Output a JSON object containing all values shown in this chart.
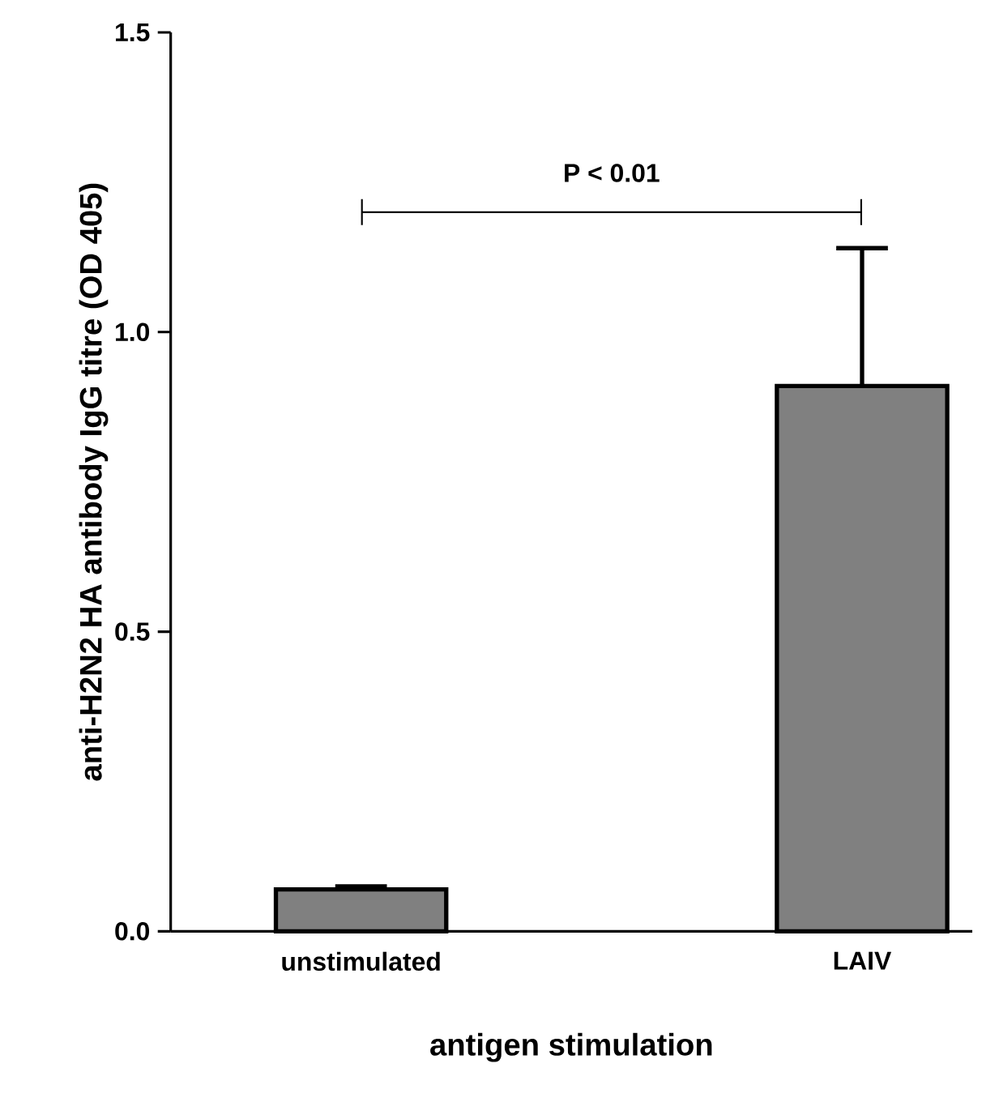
{
  "chart_data": {
    "type": "bar",
    "xlabel": "antigen stimulation",
    "ylabel": "anti-H2N2 HA antibody IgG titre (OD 405)",
    "categories": [
      "unstimulated",
      "LAIV"
    ],
    "values": [
      0.07,
      0.91
    ],
    "errors": [
      [
        0.07,
        0.075
      ],
      [
        0.91,
        1.14
      ]
    ],
    "color": "#808080",
    "ylim": [
      0,
      1.5
    ],
    "yticks": [
      {
        "value": 0,
        "label": "0.0"
      },
      {
        "value": 0.5,
        "label": "0.5"
      },
      {
        "value": 1.0,
        "label": "1.0"
      },
      {
        "value": 1.5,
        "label": "1.5"
      }
    ],
    "annotations": [
      "P < 0.01"
    ],
    "grid": false
  }
}
